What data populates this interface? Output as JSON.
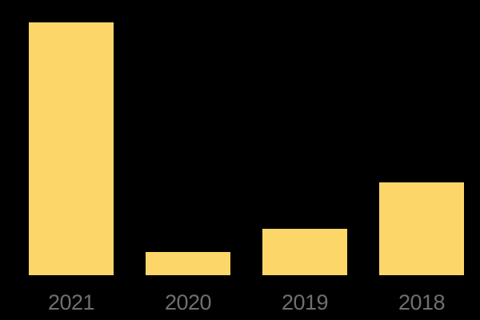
{
  "background_color": "#000000",
  "chart_data": {
    "type": "bar",
    "title": "",
    "xlabel": "",
    "ylabel": "",
    "categories": [
      "2021",
      "2020",
      "2019",
      "2018"
    ],
    "values": [
      316,
      29,
      58,
      116
    ],
    "value_note": "no y-axis, gridlines or data labels are shown; values are relative units estimated from bar heights (ratio approx 10.9 : 1 : 2 : 4)",
    "ylim": [
      0,
      316
    ],
    "grid": false,
    "legend": false,
    "bar_color": "#FDD66A",
    "tick_label_color": "#6F6F6F"
  }
}
